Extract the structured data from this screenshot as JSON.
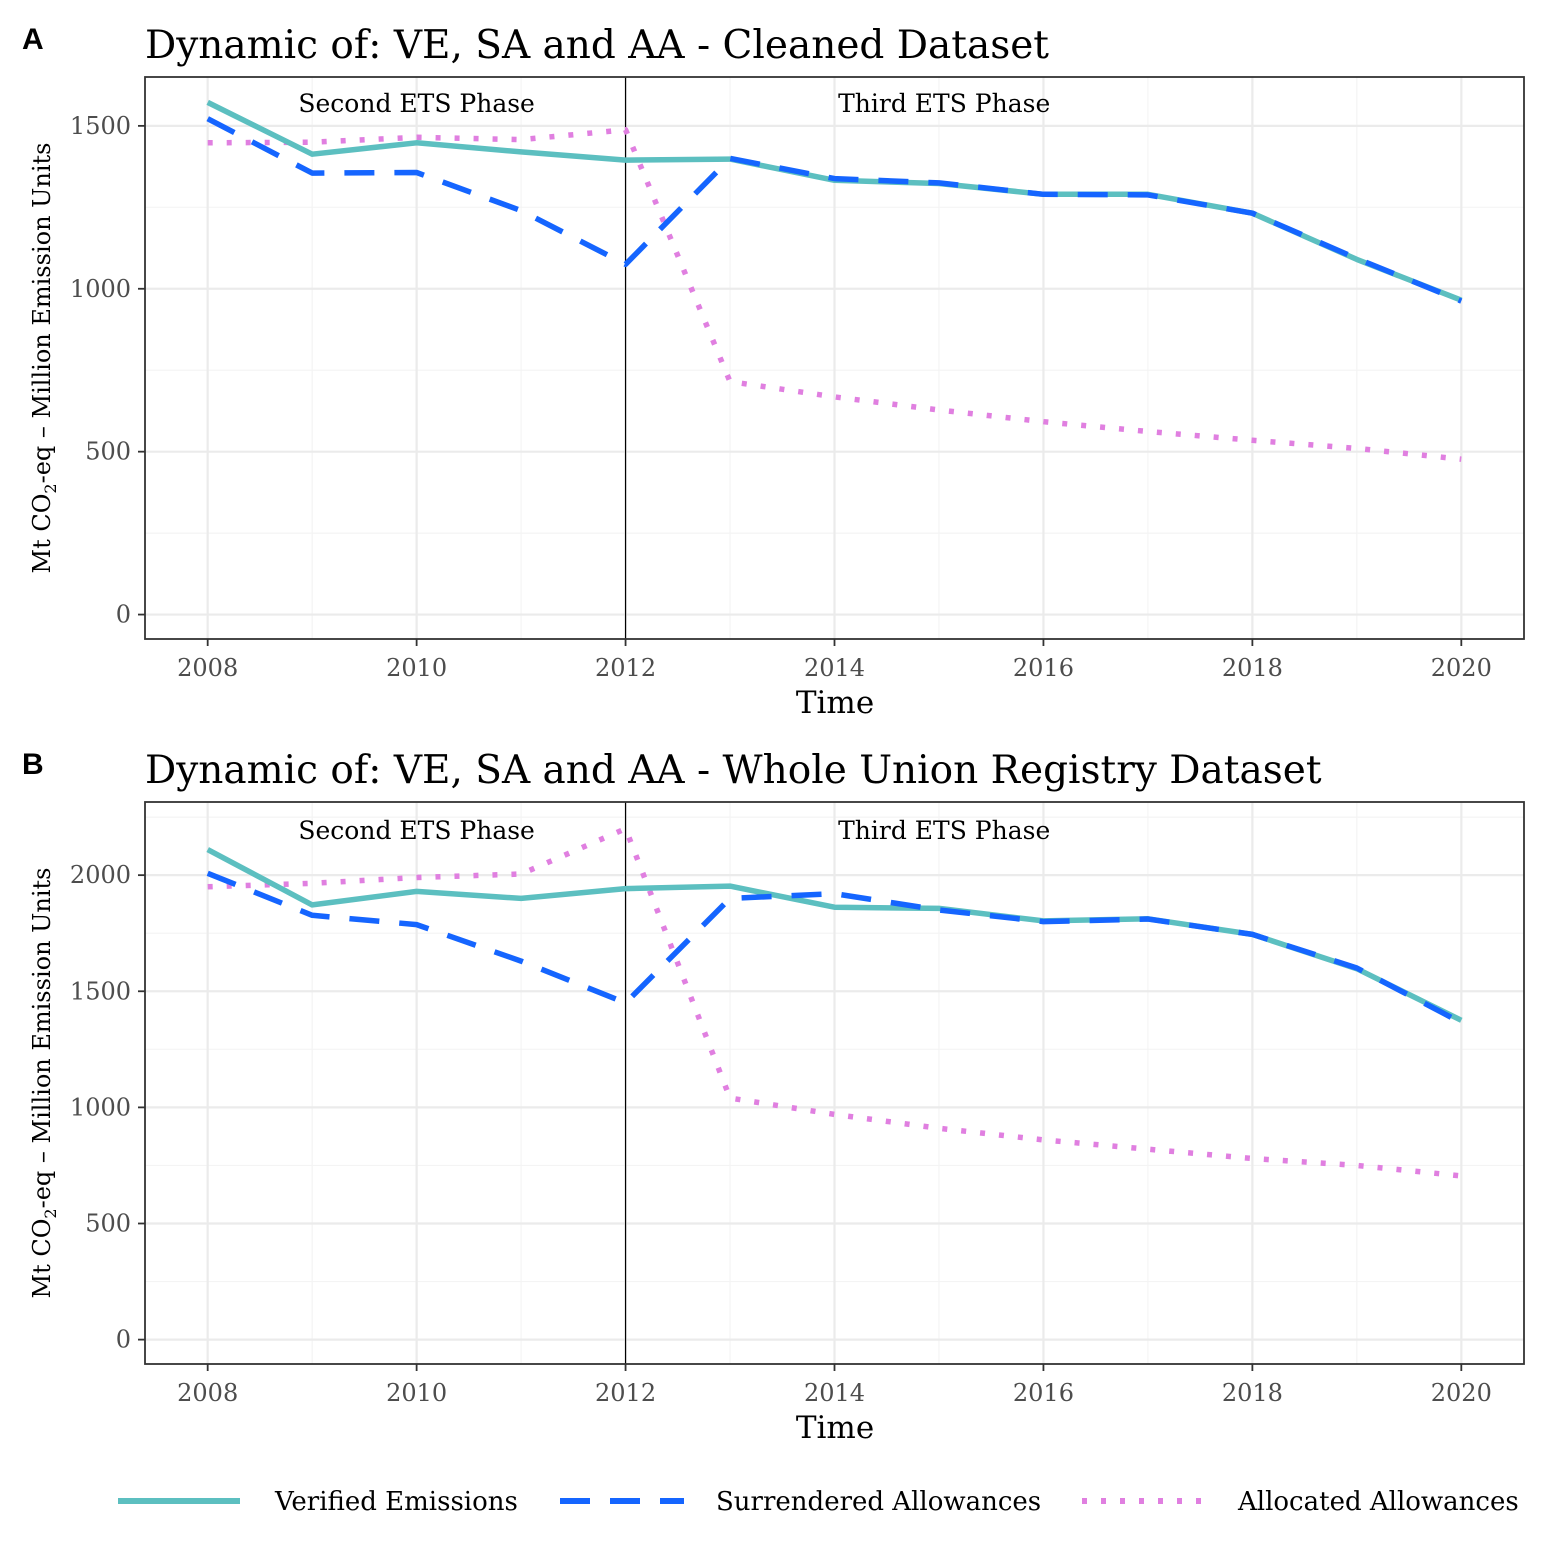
{
  "colors": {
    "verified": "#5cbfc0",
    "surrendered": "#1565ff",
    "allocated": "#e07fe0",
    "grid_major": "#ebebeb",
    "grid_minor": "#f4f4f4",
    "panel_border": "#333333",
    "tick_text": "#4d4d4d"
  },
  "legend": {
    "items": [
      {
        "key": "verified",
        "label": "Verified Emissions",
        "style": "solid"
      },
      {
        "key": "surrendered",
        "label": "Surrendered Allowances",
        "style": "dashed"
      },
      {
        "key": "allocated",
        "label": "Allocated Allowances",
        "style": "dotted"
      }
    ]
  },
  "chart_data": [
    {
      "type": "line",
      "panel_label": "A",
      "title": "Dynamic of: VE, SA and AA - Cleaned Dataset",
      "xlabel": "Time",
      "ylabel_parts": [
        "Mt CO",
        "2",
        "-eq – Million Emission Units"
      ],
      "x": [
        2008,
        2009,
        2010,
        2011,
        2012,
        2013,
        2014,
        2015,
        2016,
        2017,
        2018,
        2019,
        2020
      ],
      "xlim": [
        2007.4,
        2020.6
      ],
      "ylim": [
        -75,
        1650
      ],
      "xticks": [
        2008,
        2010,
        2012,
        2014,
        2016,
        2018,
        2020
      ],
      "yticks": [
        0,
        500,
        1000,
        1500
      ],
      "phase_divider": 2012,
      "annotations": [
        {
          "text": "Second ETS Phase",
          "x": 2010,
          "y": 1570
        },
        {
          "text": "Third ETS Phase",
          "x": 2015.05,
          "y": 1570
        }
      ],
      "series": [
        {
          "key": "verified",
          "name": "Verified Emissions",
          "values": [
            1572,
            1413,
            1448,
            1420,
            1395,
            1398,
            1333,
            1323,
            1290,
            1290,
            1232,
            1090,
            965
          ]
        },
        {
          "key": "surrendered",
          "name": "Surrendered Allowances",
          "values": [
            1522,
            1355,
            1357,
            1240,
            1075,
            1400,
            1338,
            1325,
            1290,
            1288,
            1232,
            1093,
            962
          ]
        },
        {
          "key": "allocated",
          "name": "Allocated Allowances",
          "values": [
            1448,
            1450,
            1465,
            1458,
            1488,
            715,
            668,
            628,
            592,
            562,
            535,
            510,
            477
          ]
        }
      ]
    },
    {
      "type": "line",
      "panel_label": "B",
      "title": "Dynamic of: VE, SA and AA - Whole Union Registry Dataset",
      "xlabel": "Time",
      "ylabel_parts": [
        "Mt CO",
        "2",
        "-eq – Million Emission Units"
      ],
      "x": [
        2008,
        2009,
        2010,
        2011,
        2012,
        2013,
        2014,
        2015,
        2016,
        2017,
        2018,
        2019,
        2020
      ],
      "xlim": [
        2007.4,
        2020.6
      ],
      "ylim": [
        -105,
        2315
      ],
      "xticks": [
        2008,
        2010,
        2012,
        2014,
        2016,
        2018,
        2020
      ],
      "yticks": [
        0,
        500,
        1000,
        1500,
        2000
      ],
      "phase_divider": 2012,
      "annotations": [
        {
          "text": "Second ETS Phase",
          "x": 2010,
          "y": 2195
        },
        {
          "text": "Third ETS Phase",
          "x": 2015.05,
          "y": 2195
        }
      ],
      "series": [
        {
          "key": "verified",
          "name": "Verified Emissions",
          "values": [
            2110,
            1872,
            1930,
            1900,
            1942,
            1953,
            1862,
            1857,
            1803,
            1812,
            1745,
            1597,
            1375
          ]
        },
        {
          "key": "surrendered",
          "name": "Surrendered Allowances",
          "values": [
            2008,
            1827,
            1787,
            1630,
            1450,
            1900,
            1920,
            1850,
            1800,
            1811,
            1745,
            1600,
            1365
          ]
        },
        {
          "key": "allocated",
          "name": "Allocated Allowances",
          "values": [
            1950,
            1965,
            1990,
            2005,
            2200,
            1040,
            970,
            910,
            860,
            820,
            780,
            750,
            705
          ]
        }
      ]
    }
  ]
}
